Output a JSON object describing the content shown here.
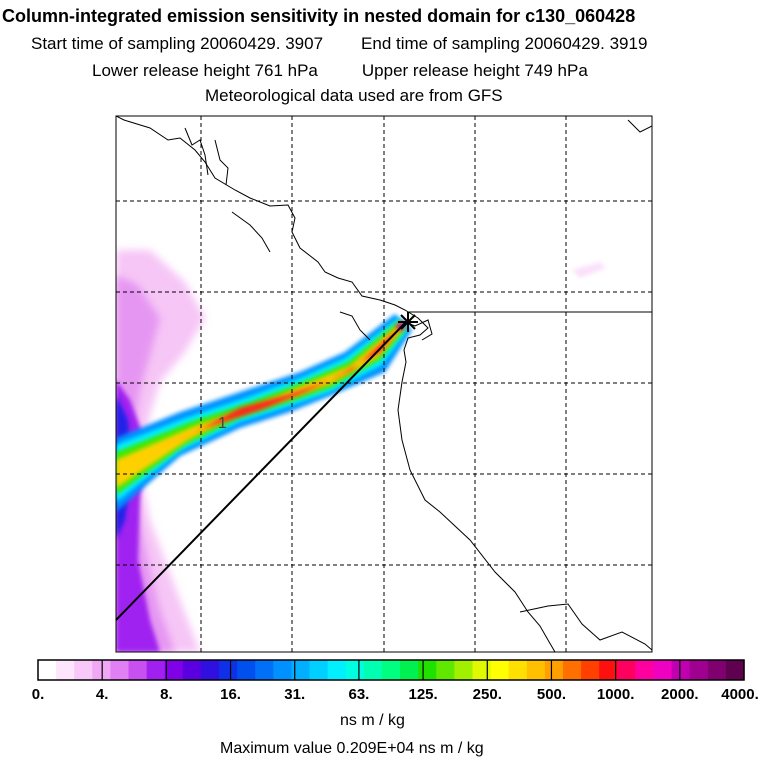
{
  "header": {
    "title": "Column-integrated emission sensitivity in nested domain for c130_060428",
    "start_label": "Start time of sampling 20060429.  3907",
    "end_label": "End time of sampling 20060429.  3919",
    "lower_label": "Lower release height  761 hPa",
    "upper_label": "Upper release height  749 hPa",
    "met_label": "Meteorological data used are from GFS"
  },
  "chart_data": {
    "type": "heatmap",
    "title": "Column-integrated emission sensitivity in nested domain for c130_060428",
    "units": "ns m / kg",
    "max_value_text": "Maximum value  0.209E+04 ns m / kg",
    "plume_label": "1",
    "colorbar": {
      "tick_labels": [
        "0.",
        "4.",
        "8.",
        "16.",
        "31.",
        "63.",
        "125.",
        "250.",
        "500.",
        "1000.",
        "2000.",
        "4000."
      ],
      "colors": [
        "#ffffff",
        "#fde6fd",
        "#f8c8f8",
        "#f0a8f4",
        "#e080f4",
        "#c850f0",
        "#a020f0",
        "#8000e8",
        "#5a00e0",
        "#3010e0",
        "#1030e8",
        "#0050f0",
        "#0070f8",
        "#0090ff",
        "#00b0ff",
        "#00d0ff",
        "#00f0ff",
        "#00ffe0",
        "#00ffb0",
        "#00ff80",
        "#00f050",
        "#20e000",
        "#60e800",
        "#a0f000",
        "#e0f800",
        "#ffff00",
        "#ffe000",
        "#ffc000",
        "#ffa000",
        "#ff7000",
        "#ff4000",
        "#ff1010",
        "#ff0060",
        "#ff00a0",
        "#f000c0",
        "#c000b0",
        "#a00090",
        "#800070",
        "#600050"
      ]
    }
  }
}
